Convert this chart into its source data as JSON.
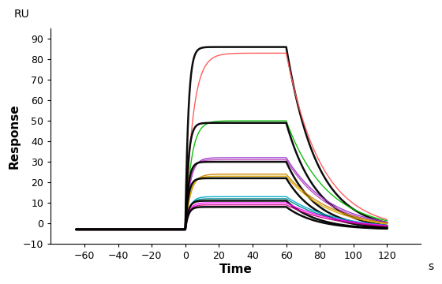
{
  "xlabel": "Time",
  "ylabel": "Response",
  "xlabel_unit": "s",
  "ylabel_unit": "RU",
  "xlim": [
    -80,
    140
  ],
  "ylim": [
    -10,
    95
  ],
  "xticks": [
    -60,
    -40,
    -20,
    0,
    20,
    40,
    60,
    80,
    100,
    120
  ],
  "yticks": [
    -10,
    0,
    10,
    20,
    30,
    40,
    50,
    60,
    70,
    80,
    90
  ],
  "baseline": -3,
  "t_assoc_start": 0,
  "t_dissoc_start": 60,
  "t_end": 120,
  "curves": [
    {
      "color": "#000000",
      "plateau": 86,
      "ka": 0.55,
      "kd": 0.055,
      "lw": 1.8
    },
    {
      "color": "#ff5555",
      "plateau": 83,
      "ka": 0.22,
      "kd": 0.048,
      "lw": 1.0
    },
    {
      "color": "#00bb00",
      "plateau": 50,
      "ka": 0.28,
      "kd": 0.042,
      "lw": 1.0
    },
    {
      "color": "#000000",
      "plateau": 49,
      "ka": 0.55,
      "kd": 0.055,
      "lw": 1.8
    },
    {
      "color": "#9933cc",
      "plateau": 32,
      "ka": 0.35,
      "kd": 0.038,
      "lw": 1.0
    },
    {
      "color": "#bb44bb",
      "plateau": 31,
      "ka": 0.4,
      "kd": 0.04,
      "lw": 1.0
    },
    {
      "color": "#000000",
      "plateau": 30,
      "ka": 0.55,
      "kd": 0.055,
      "lw": 1.8
    },
    {
      "color": "#cc8800",
      "plateau": 24,
      "ka": 0.32,
      "kd": 0.036,
      "lw": 1.0
    },
    {
      "color": "#ddaa00",
      "plateau": 23,
      "ka": 0.38,
      "kd": 0.038,
      "lw": 1.0
    },
    {
      "color": "#000000",
      "plateau": 22,
      "ka": 0.55,
      "kd": 0.055,
      "lw": 1.8
    },
    {
      "color": "#00aacc",
      "plateau": 13,
      "ka": 0.4,
      "kd": 0.034,
      "lw": 1.0
    },
    {
      "color": "#008888",
      "plateau": 12,
      "ka": 0.45,
      "kd": 0.036,
      "lw": 1.0
    },
    {
      "color": "#000000",
      "plateau": 11,
      "ka": 0.55,
      "kd": 0.055,
      "lw": 1.8
    },
    {
      "color": "#ff00ff",
      "plateau": 10,
      "ka": 0.45,
      "kd": 0.032,
      "lw": 1.0
    },
    {
      "color": "#cc0088",
      "plateau": 9,
      "ka": 0.48,
      "kd": 0.034,
      "lw": 1.0
    },
    {
      "color": "#000000",
      "plateau": 8,
      "ka": 0.55,
      "kd": 0.055,
      "lw": 1.8
    }
  ]
}
